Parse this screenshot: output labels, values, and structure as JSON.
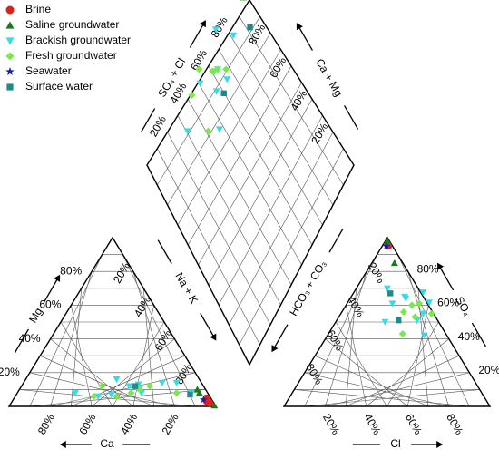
{
  "chart_data": {
    "type": "scatter",
    "subtype": "piper",
    "legend": {
      "placement": "top-left",
      "entries": [
        {
          "name": "Brine",
          "marker": "circle",
          "color": "#e0201c"
        },
        {
          "name": "Saline groundwater",
          "marker": "triangle-up",
          "color": "#1b7a1b"
        },
        {
          "name": "Brackish groundwater",
          "marker": "triangle-down",
          "color": "#33dde8"
        },
        {
          "name": "Fresh groundwater",
          "marker": "diamond",
          "color": "#7be84a"
        },
        {
          "name": "Seawater",
          "marker": "star",
          "color": "#1a1aa8"
        },
        {
          "name": "Surface water",
          "marker": "square",
          "color": "#1e8a8a"
        }
      ]
    },
    "axis_labels": {
      "ca": "Ca",
      "mg": "Mg",
      "na_k": "Na + K",
      "cl": "Cl",
      "so4": "SO₄",
      "hco3_co3": "HCO₃ + CO₃",
      "so4_cl": "SO₄ + Cl",
      "ca_mg": "Ca + Mg"
    },
    "tick_labels": [
      "20%",
      "40%",
      "60%",
      "80%"
    ],
    "cation_ticks": {
      "mg": [
        "80%",
        "60%",
        "40%",
        "20%"
      ],
      "na_k": [
        "20%",
        "40%",
        "60%",
        "80%"
      ],
      "ca": [
        "80%",
        "60%",
        "40%",
        "20%"
      ]
    },
    "anion_ticks": {
      "hco3_co3": [
        "20%",
        "40%",
        "60%",
        "80%"
      ],
      "so4": [
        "80%",
        "60%",
        "40%",
        "20%"
      ],
      "cl": [
        "20%",
        "40%",
        "60%",
        "80%"
      ]
    },
    "diamond_ticks": {
      "so4_cl": [
        "20%",
        "40%",
        "60%",
        "80%"
      ],
      "ca_mg": [
        "80%",
        "60%",
        "40%",
        "20%"
      ]
    },
    "series": [
      {
        "name": "Brine",
        "cations": [
          [
            94,
            3
          ],
          [
            93,
            5
          ],
          [
            96,
            2
          ]
        ],
        "anions": [
          [
            3,
            95
          ],
          [
            2,
            96
          ]
        ]
      },
      {
        "name": "Saline groundwater",
        "cations": [
          [
            88,
            8
          ],
          [
            86,
            10
          ],
          [
            99,
            0.5
          ]
        ],
        "anions": [
          [
            11,
            85
          ],
          [
            1,
            98
          ]
        ]
      },
      {
        "name": "Brackish groundwater",
        "cations": [
          [
            60,
            8
          ],
          [
            52,
            12
          ],
          [
            74,
            14
          ],
          [
            44,
            16
          ],
          [
            58,
            10
          ],
          [
            28,
            8
          ],
          [
            56,
            13
          ],
          [
            84,
            8
          ],
          [
            46,
            7
          ],
          [
            67,
            14
          ],
          [
            40,
            6
          ]
        ],
        "anions": [
          [
            22,
            61
          ],
          [
            15,
            70
          ],
          [
            27,
            64
          ],
          [
            24,
            50
          ],
          [
            39,
            51
          ],
          [
            47,
            42
          ],
          [
            26,
            65
          ],
          [
            37,
            64
          ],
          [
            40,
            55
          ],
          [
            31,
            70
          ]
        ]
      },
      {
        "name": "Fresh groundwater",
        "cations": [
          [
            58,
            10
          ],
          [
            49,
            6
          ],
          [
            39,
            12
          ],
          [
            38,
            6
          ],
          [
            62,
            12
          ],
          [
            55,
            8
          ],
          [
            77,
            8
          ]
        ],
        "anions": [
          [
            37,
            53
          ],
          [
            44,
            55
          ],
          [
            35,
            61
          ],
          [
            36,
            43
          ],
          [
            30,
            56
          ],
          [
            32,
            60
          ]
        ]
      },
      {
        "name": "Seawater",
        "cations": [
          [
            92,
            4
          ]
        ],
        "anions": [
          [
            2,
            95
          ]
        ]
      },
      {
        "name": "Surface water",
        "cations": [
          [
            55,
            12
          ],
          [
            84,
            7
          ]
        ],
        "anions": [
          [
            30,
            51
          ],
          [
            18,
            67
          ]
        ]
      }
    ]
  }
}
